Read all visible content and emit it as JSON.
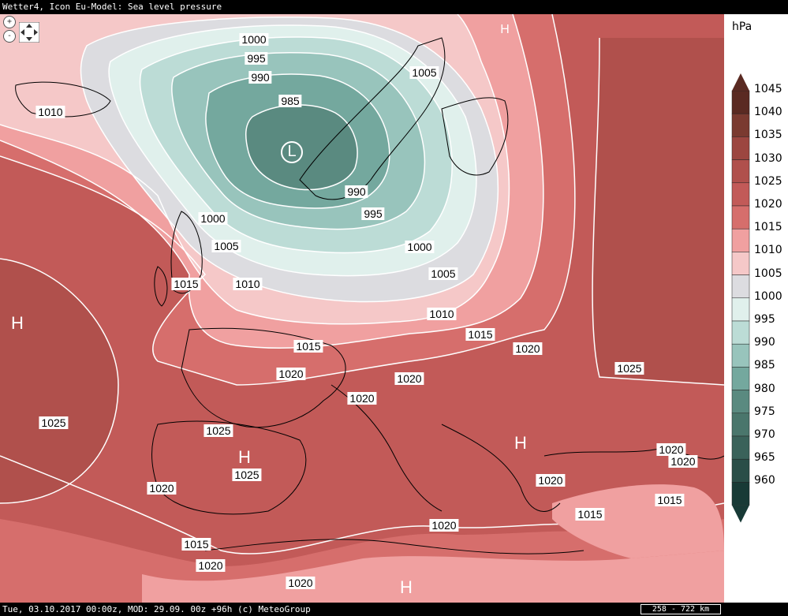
{
  "title": "Wetter4, Icon Eu-Model: Sea level pressure",
  "footer": {
    "info": "Tue, 03.10.2017 00:00z, MOD: 29.09. 00z +96h (c) MeteoGroup",
    "scale": "258 - 722 km"
  },
  "legend": {
    "unit": "hPa",
    "levels": [
      {
        "value": "1045",
        "color": "#5a2a22"
      },
      {
        "value": "1040",
        "color": "#7a3a30"
      },
      {
        "value": "1035",
        "color": "#9c4640"
      },
      {
        "value": "1030",
        "color": "#b0504c"
      },
      {
        "value": "1025",
        "color": "#c25a58"
      },
      {
        "value": "1020",
        "color": "#d66e6c"
      },
      {
        "value": "1015",
        "color": "#f0a0a0"
      },
      {
        "value": "1010",
        "color": "#f5c8c8"
      },
      {
        "value": "1005",
        "color": "#dcdce0"
      },
      {
        "value": "1000",
        "color": "#e0f0ec"
      },
      {
        "value": "995",
        "color": "#bcdcd6"
      },
      {
        "value": "990",
        "color": "#98c4bc"
      },
      {
        "value": "985",
        "color": "#74a89e"
      },
      {
        "value": "980",
        "color": "#5a8a80"
      },
      {
        "value": "975",
        "color": "#4a766c"
      },
      {
        "value": "970",
        "color": "#3a625a"
      },
      {
        "value": "965",
        "color": "#2a4e48"
      },
      {
        "value": "960",
        "color": "#183a36"
      }
    ]
  },
  "pressure_centers": [
    {
      "symbol": "L",
      "kind": "low"
    },
    {
      "symbol": "H",
      "kind": "high"
    },
    {
      "symbol": "H",
      "kind": "high"
    },
    {
      "symbol": "H",
      "kind": "high"
    },
    {
      "symbol": "H",
      "kind": "high"
    },
    {
      "symbol": "H",
      "kind": "high"
    }
  ],
  "isobar_labels": [
    "1000",
    "995",
    "990",
    "985",
    "990",
    "995",
    "1000",
    "1005",
    "1005",
    "1000",
    "1010",
    "1000",
    "1005",
    "1015",
    "1010",
    "1010",
    "1015",
    "1015",
    "1020",
    "1020",
    "1020",
    "1020",
    "1025",
    "1025",
    "1025",
    "1025",
    "1020",
    "1020",
    "1020",
    "1015",
    "1015",
    "1020",
    "1015",
    "1020",
    "1020",
    "1020"
  ],
  "nav": {
    "zoom_in": "+",
    "zoom_out": "-"
  }
}
